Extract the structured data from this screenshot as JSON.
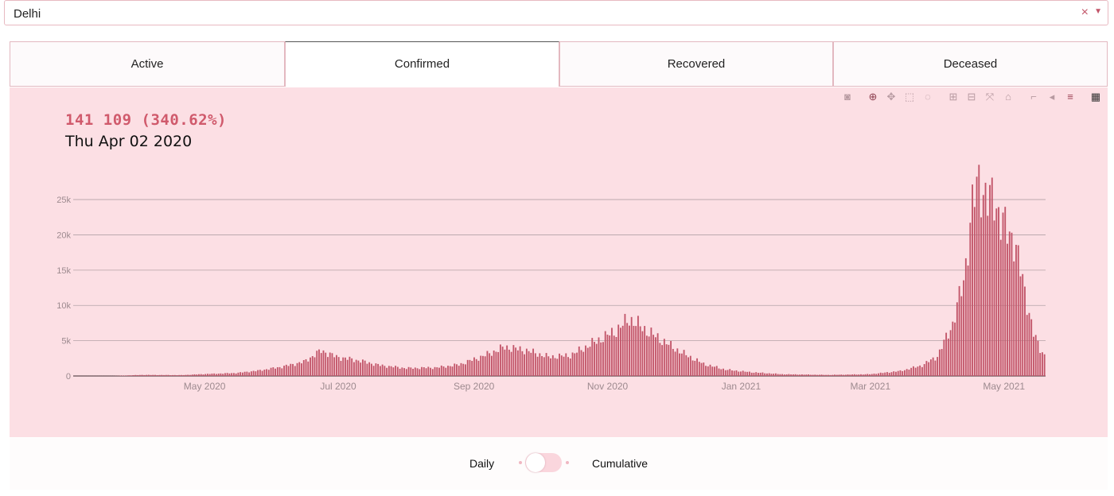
{
  "location_select": {
    "value": "Delhi",
    "clear_glyph": "×",
    "arrow_glyph": "▼"
  },
  "tabs": [
    {
      "label": "Active",
      "active": false
    },
    {
      "label": "Confirmed",
      "active": true
    },
    {
      "label": "Recovered",
      "active": false
    },
    {
      "label": "Deceased",
      "active": false
    }
  ],
  "modebar_icons": [
    "camera-icon",
    "zoom-icon",
    "pan-icon",
    "box-select-icon",
    "lasso-icon",
    "zoom-in-icon",
    "zoom-out-icon",
    "autoscale-icon",
    "home-icon",
    "spike-lines-icon",
    "hover-closest-icon",
    "hover-compare-icon",
    "plotly-logo-icon"
  ],
  "hover": {
    "value": "141 109 (340.62%)",
    "date": "Thu Apr 02 2020"
  },
  "toggle": {
    "left_label": "Daily",
    "right_label": "Cumulative",
    "state": "Daily"
  },
  "colors": {
    "bar": "#c25569",
    "panel": "#fcdfe4",
    "grid": "#b3a2a6",
    "tick": "#9d8a8f"
  },
  "chart_data": {
    "type": "bar",
    "start_date": "2020-03-02",
    "end_date": "2021-05-20",
    "ylim": [
      0,
      28500
    ],
    "yticks": [
      0,
      5000,
      10000,
      15000,
      20000,
      25000
    ],
    "ytick_labels": [
      "0",
      "5k",
      "10k",
      "15k",
      "20k",
      "25k"
    ],
    "xticks": [
      "2020-05-01",
      "2020-07-01",
      "2020-09-01",
      "2020-11-01",
      "2021-01-01",
      "2021-03-01",
      "2021-05-01"
    ],
    "xtick_labels": [
      "May 2020",
      "Jul 2020",
      "Sep 2020",
      "Nov 2020",
      "Jan 2021",
      "Mar 2021",
      "May 2021"
    ],
    "series": [
      {
        "name": "",
        "anchors": [
          [
            "2020-03-02",
            0
          ],
          [
            "2020-03-20",
            10
          ],
          [
            "2020-04-02",
            150
          ],
          [
            "2020-04-20",
            120
          ],
          [
            "2020-05-01",
            280
          ],
          [
            "2020-05-15",
            420
          ],
          [
            "2020-05-25",
            750
          ],
          [
            "2020-06-05",
            1300
          ],
          [
            "2020-06-15",
            2000
          ],
          [
            "2020-06-23",
            3600
          ],
          [
            "2020-06-30",
            2700
          ],
          [
            "2020-07-10",
            2200
          ],
          [
            "2020-07-20",
            1500
          ],
          [
            "2020-08-01",
            1100
          ],
          [
            "2020-08-15",
            1200
          ],
          [
            "2020-08-25",
            1600
          ],
          [
            "2020-09-05",
            2800
          ],
          [
            "2020-09-15",
            4100
          ],
          [
            "2020-09-25",
            3600
          ],
          [
            "2020-10-05",
            2700
          ],
          [
            "2020-10-15",
            2900
          ],
          [
            "2020-10-25",
            4600
          ],
          [
            "2020-11-05",
            6400
          ],
          [
            "2020-11-11",
            8100
          ],
          [
            "2020-11-18",
            6600
          ],
          [
            "2020-11-25",
            5200
          ],
          [
            "2020-12-05",
            3300
          ],
          [
            "2020-12-15",
            1700
          ],
          [
            "2020-12-25",
            900
          ],
          [
            "2021-01-05",
            550
          ],
          [
            "2021-01-20",
            250
          ],
          [
            "2021-02-10",
            150
          ],
          [
            "2021-03-01",
            250
          ],
          [
            "2021-03-15",
            700
          ],
          [
            "2021-03-25",
            1500
          ],
          [
            "2021-04-01",
            2800
          ],
          [
            "2021-04-08",
            7400
          ],
          [
            "2021-04-13",
            13500
          ],
          [
            "2021-04-17",
            24000
          ],
          [
            "2021-04-20",
            28000
          ],
          [
            "2021-04-24",
            24500
          ],
          [
            "2021-04-27",
            25500
          ],
          [
            "2021-04-30",
            22000
          ],
          [
            "2021-05-03",
            20500
          ],
          [
            "2021-05-06",
            19500
          ],
          [
            "2021-05-09",
            15000
          ],
          [
            "2021-05-12",
            10500
          ],
          [
            "2021-05-15",
            6000
          ],
          [
            "2021-05-18",
            3800
          ],
          [
            "2021-05-20",
            3000
          ]
        ]
      }
    ]
  }
}
